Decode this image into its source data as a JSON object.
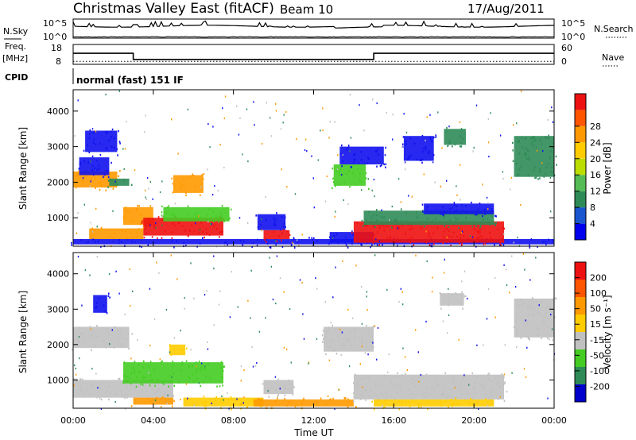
{
  "header": {
    "title": "Christmas Valley East (fitACF)",
    "beam": "Beam 10",
    "date": "17/Aug/2011"
  },
  "left_labels": {
    "nsky": "N.Sky",
    "freq": "Freq.",
    "freq_unit": "[MHz]",
    "cpid": "CPID"
  },
  "right_labels": {
    "nsearch": "N.Search",
    "nave": "Nave"
  },
  "cpid_text": "normal (fast) 151 IF",
  "colors": {
    "blue": "#1111ee",
    "dark_green": "#2e8b57",
    "green": "#44cc22",
    "gray": "#c0c0c0",
    "yellow": "#ffcc00",
    "orange": "#ff9900",
    "red": "#ee1111"
  },
  "chart_data": [
    {
      "type": "line",
      "name_panel": "noise",
      "left_ticks": [
        "10^5",
        "10^0"
      ],
      "right_ticks": [
        "10^5",
        "10^0"
      ],
      "x_range": [
        0,
        24
      ]
    },
    {
      "type": "line",
      "name_panel": "frequency",
      "left_ticks": [
        "18",
        "8"
      ],
      "right_ticks": [
        "60",
        "0"
      ],
      "freq_segments": [
        {
          "x": [
            0,
            3
          ],
          "mhz": 15
        },
        {
          "x": [
            3,
            15
          ],
          "mhz": 10.5
        },
        {
          "x": [
            15,
            24
          ],
          "mhz": 15
        }
      ],
      "nave_value": 6
    },
    {
      "type": "heatmap",
      "name_panel": "power",
      "ylabel": "Slant Range [km]",
      "yticks": [
        "1000",
        "2000",
        "3000",
        "4000"
      ],
      "ylim": [
        200,
        4600
      ],
      "colorbar_label": "Power [dB]",
      "colorbar_ticks": [
        "4",
        "8",
        "12",
        "16",
        "20",
        "24",
        "28"
      ],
      "colorbar_colors": [
        "#0000ee",
        "#1a55d0",
        "#2e8b57",
        "#55bb55",
        "#bbdd00",
        "#ffcc00",
        "#ff9900",
        "#ff5500",
        "#ee1111"
      ],
      "patches": [
        {
          "x": [
            0,
            2.2
          ],
          "y": [
            1850,
            2300
          ],
          "c": "orange"
        },
        {
          "x": [
            0.3,
            1.8
          ],
          "y": [
            2200,
            2700
          ],
          "c": "blue"
        },
        {
          "x": [
            1.8,
            2.8
          ],
          "y": [
            1900,
            2100
          ],
          "c": "dark_green"
        },
        {
          "x": [
            0.6,
            2.2
          ],
          "y": [
            2850,
            3450
          ],
          "c": "blue"
        },
        {
          "x": [
            2.5,
            4.0
          ],
          "y": [
            800,
            1300
          ],
          "c": "orange"
        },
        {
          "x": [
            3.5,
            7.5
          ],
          "y": [
            500,
            1000
          ],
          "c": "red"
        },
        {
          "x": [
            4.5,
            7.8
          ],
          "y": [
            900,
            1300
          ],
          "c": "green"
        },
        {
          "x": [
            5.0,
            6.5
          ],
          "y": [
            1700,
            2200
          ],
          "c": "orange"
        },
        {
          "x": [
            0.8,
            3.5
          ],
          "y": [
            400,
            700
          ],
          "c": "orange"
        },
        {
          "x": [
            0,
            24
          ],
          "y": [
            250,
            400
          ],
          "c": "blue"
        },
        {
          "x": [
            9.2,
            10.6
          ],
          "y": [
            650,
            1100
          ],
          "c": "blue"
        },
        {
          "x": [
            9.5,
            10.8
          ],
          "y": [
            400,
            650
          ],
          "c": "red"
        },
        {
          "x": [
            12.8,
            15.0
          ],
          "y": [
            300,
            600
          ],
          "c": "blue"
        },
        {
          "x": [
            13.0,
            14.6
          ],
          "y": [
            1900,
            2500
          ],
          "c": "green"
        },
        {
          "x": [
            13.3,
            15.5
          ],
          "y": [
            2500,
            3000
          ],
          "c": "blue"
        },
        {
          "x": [
            14.0,
            21.5
          ],
          "y": [
            300,
            900
          ],
          "c": "red"
        },
        {
          "x": [
            14.5,
            21.0
          ],
          "y": [
            800,
            1200
          ],
          "c": "dark_green"
        },
        {
          "x": [
            17.5,
            21.0
          ],
          "y": [
            1100,
            1400
          ],
          "c": "blue"
        },
        {
          "x": [
            18.5,
            19.6
          ],
          "y": [
            3050,
            3500
          ],
          "c": "dark_green"
        },
        {
          "x": [
            22.0,
            24
          ],
          "y": [
            2150,
            3300
          ],
          "c": "dark_green"
        },
        {
          "x": [
            16.5,
            18.0
          ],
          "y": [
            2600,
            3300
          ],
          "c": "blue"
        }
      ]
    },
    {
      "type": "heatmap",
      "name_panel": "velocity",
      "ylabel": "Slant Range [km]",
      "xlabel": "Time UT",
      "yticks": [
        "1000",
        "2000",
        "3000",
        "4000"
      ],
      "ylim": [
        200,
        4600
      ],
      "xticks": [
        "00:00",
        "04:00",
        "08:00",
        "12:00",
        "16:00",
        "20:00",
        "00:00"
      ],
      "x_range": [
        0,
        24
      ],
      "colorbar_label": "Velocity [m s⁻¹]",
      "colorbar_ticks": [
        "200",
        "100",
        "50",
        "15",
        "-15",
        "-50",
        "-100",
        "-200"
      ],
      "colorbar_colors": [
        "#0000cc",
        "#2e8b57",
        "#44cc22",
        "#c0c0c0",
        "#ffcc00",
        "#ff9900",
        "#ff5500",
        "#ee1111"
      ],
      "patches": [
        {
          "x": [
            0,
            2.8
          ],
          "y": [
            1900,
            2500
          ],
          "c": "gray"
        },
        {
          "x": [
            1.0,
            1.7
          ],
          "y": [
            2900,
            3400
          ],
          "c": "blue"
        },
        {
          "x": [
            0,
            5.0
          ],
          "y": [
            500,
            1000
          ],
          "c": "gray"
        },
        {
          "x": [
            2.5,
            7.5
          ],
          "y": [
            900,
            1500
          ],
          "c": "green"
        },
        {
          "x": [
            4.8,
            5.6
          ],
          "y": [
            1700,
            2000
          ],
          "c": "yellow"
        },
        {
          "x": [
            3.0,
            5.0
          ],
          "y": [
            300,
            500
          ],
          "c": "orange"
        },
        {
          "x": [
            5.5,
            9.5
          ],
          "y": [
            250,
            500
          ],
          "c": "yellow"
        },
        {
          "x": [
            9.0,
            14.0
          ],
          "y": [
            250,
            450
          ],
          "c": "orange"
        },
        {
          "x": [
            9.5,
            11.0
          ],
          "y": [
            600,
            1000
          ],
          "c": "gray"
        },
        {
          "x": [
            12.5,
            15.0
          ],
          "y": [
            1800,
            2500
          ],
          "c": "gray"
        },
        {
          "x": [
            14.0,
            21.5
          ],
          "y": [
            450,
            1150
          ],
          "c": "gray"
        },
        {
          "x": [
            18.3,
            19.5
          ],
          "y": [
            3100,
            3450
          ],
          "c": "gray"
        },
        {
          "x": [
            22.0,
            24
          ],
          "y": [
            2200,
            3300
          ],
          "c": "gray"
        },
        {
          "x": [
            15.0,
            21.0
          ],
          "y": [
            250,
            450
          ],
          "c": "yellow"
        }
      ]
    }
  ]
}
